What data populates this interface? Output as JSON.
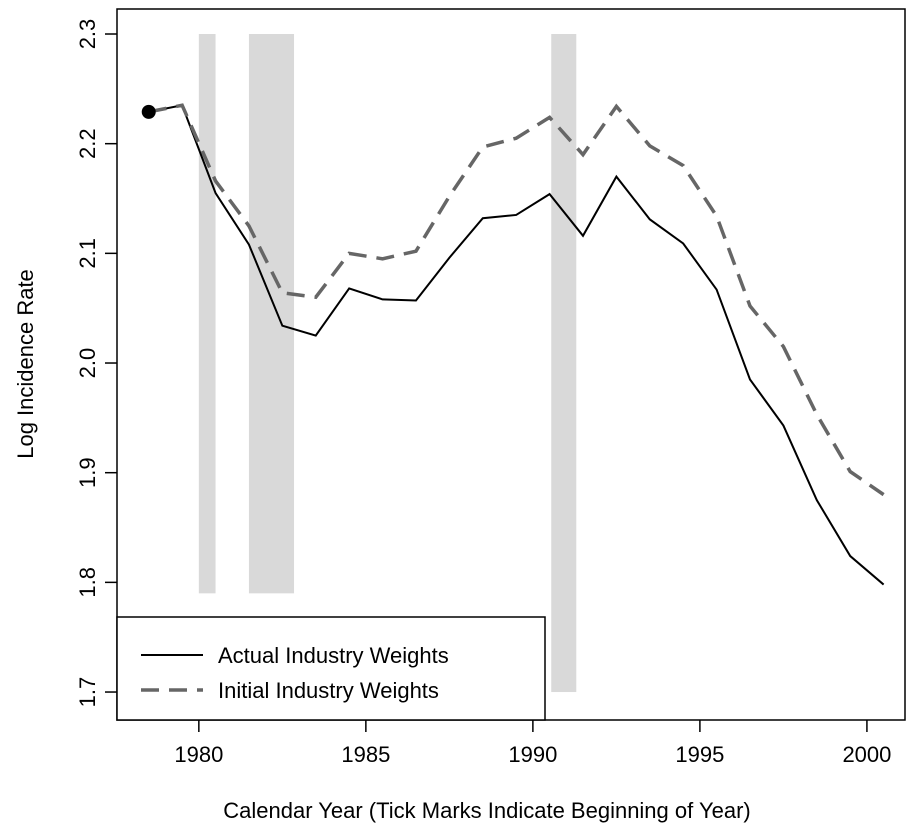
{
  "chart_data": {
    "type": "line",
    "x_label": "Calendar Year (Tick Marks Indicate Beginning of Year)",
    "y_label": "Log Incidence Rate",
    "x": [
      1978.5,
      1979.5,
      1980.5,
      1981.5,
      1982.5,
      1983.5,
      1984.5,
      1985.5,
      1986.5,
      1987.5,
      1988.5,
      1989.5,
      1990.5,
      1991.5,
      1992.5,
      1993.5,
      1994.5,
      1995.5,
      1996.5,
      1997.5,
      1998.5,
      1999.5,
      2000.5
    ],
    "series": [
      {
        "name": "Actual Industry Weights",
        "color": "#000000",
        "dash": false,
        "values": [
          2.229,
          2.235,
          2.155,
          2.108,
          2.034,
          2.025,
          2.068,
          2.058,
          2.057,
          2.096,
          2.132,
          2.135,
          2.154,
          2.116,
          2.17,
          2.131,
          2.109,
          2.067,
          1.985,
          1.943,
          1.875,
          1.824,
          1.798
        ]
      },
      {
        "name": "Initial Industry Weights",
        "color": "#666666",
        "dash": true,
        "values": [
          2.229,
          2.235,
          2.166,
          2.125,
          2.064,
          2.06,
          2.1,
          2.095,
          2.102,
          2.152,
          2.197,
          2.205,
          2.224,
          2.19,
          2.234,
          2.198,
          2.18,
          2.134,
          2.052,
          2.015,
          1.953,
          1.901,
          1.88
        ]
      }
    ],
    "first_point_marker": true,
    "shaded_regions": [
      {
        "x0": 1980.0,
        "x1": 1980.5,
        "y0": 1.79,
        "y1": 2.3
      },
      {
        "x0": 1981.5,
        "x1": 1982.85,
        "y0": 1.79,
        "y1": 2.3
      },
      {
        "x0": 1990.55,
        "x1": 1991.3,
        "y0": 1.7,
        "y1": 2.3
      }
    ],
    "shade_color": "#d9d9d9",
    "xlim": [
      1977.55,
      2001.14
    ],
    "ylim": [
      1.6745,
      2.3228
    ],
    "xticks": [
      1980,
      1985,
      1990,
      1995,
      2000
    ],
    "yticks": [
      1.7,
      1.8,
      1.9,
      {
        "value": 2,
        "label": "2.0"
      },
      2.1,
      2.2,
      2.3
    ],
    "legend": "lower left"
  }
}
